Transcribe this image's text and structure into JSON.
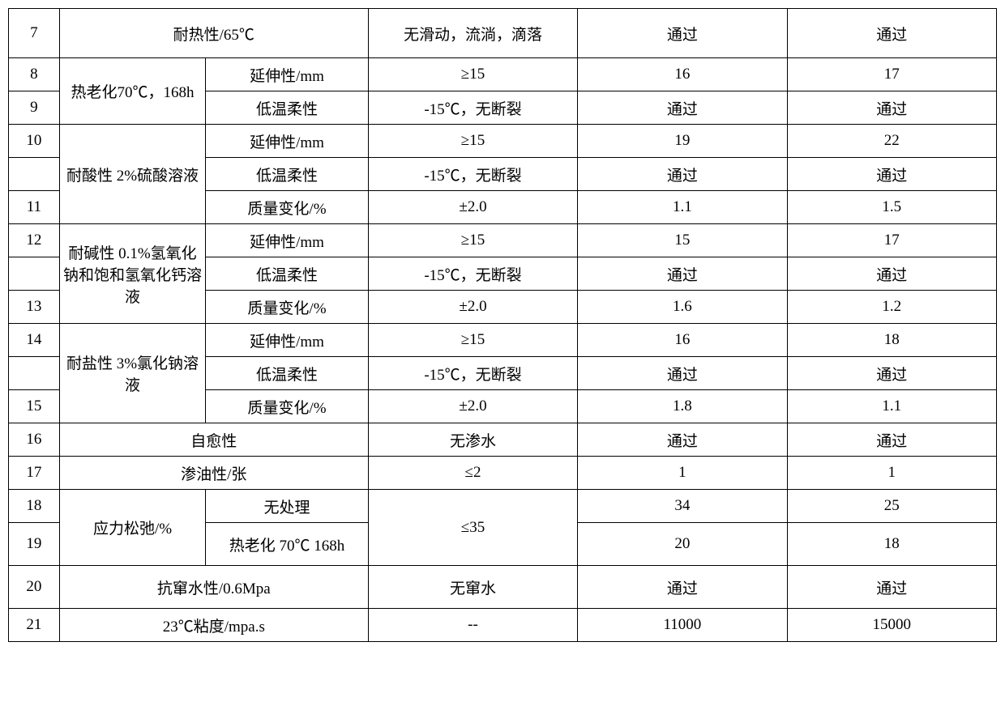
{
  "table": {
    "border_color": "#000000",
    "background": "#ffffff",
    "font_size": 19,
    "rows": {
      "r7": {
        "idx": "7",
        "cat": "耐热性/65℃",
        "req": "无滑动，流淌，滴落",
        "v1": "通过",
        "v2": "通过"
      },
      "r8": {
        "idx": "8",
        "cat": "热老化70℃，168h",
        "sub": "延伸性/mm",
        "req": "≥15",
        "v1": "16",
        "v2": "17"
      },
      "r9": {
        "idx": "9",
        "sub": "低温柔性",
        "req": "-15℃，无断裂",
        "v1": "通过",
        "v2": "通过"
      },
      "r10": {
        "idx": "10",
        "cat": "耐酸性 2%硫酸溶液",
        "sub": "延伸性/mm",
        "req": "≥15",
        "v1": "19",
        "v2": "22"
      },
      "r10b": {
        "idx": "",
        "sub": "低温柔性",
        "req": "-15℃，无断裂",
        "v1": "通过",
        "v2": "通过"
      },
      "r11": {
        "idx": "11",
        "sub": "质量变化/%",
        "req": "±2.0",
        "v1": "1.1",
        "v2": "1.5"
      },
      "r12": {
        "idx": "12",
        "cat": "耐碱性 0.1%氢氧化钠和饱和氢氧化钙溶液",
        "sub": "延伸性/mm",
        "req": "≥15",
        "v1": "15",
        "v2": "17"
      },
      "r12b": {
        "idx": "",
        "sub": "低温柔性",
        "req": "-15℃，无断裂",
        "v1": "通过",
        "v2": "通过"
      },
      "r13": {
        "idx": "13",
        "sub": "质量变化/%",
        "req": "±2.0",
        "v1": "1.6",
        "v2": "1.2"
      },
      "r14": {
        "idx": "14",
        "cat": "耐盐性 3%氯化钠溶液",
        "sub": "延伸性/mm",
        "req": "≥15",
        "v1": "16",
        "v2": "18"
      },
      "r14b": {
        "idx": "",
        "sub": "低温柔性",
        "req": "-15℃，无断裂",
        "v1": "通过",
        "v2": "通过"
      },
      "r15": {
        "idx": "15",
        "sub": "质量变化/%",
        "req": "±2.0",
        "v1": "1.8",
        "v2": "1.1"
      },
      "r16": {
        "idx": "16",
        "cat": "自愈性",
        "req": "无渗水",
        "v1": "通过",
        "v2": "通过"
      },
      "r17": {
        "idx": "17",
        "cat": "渗油性/张",
        "req": "≤2",
        "v1": "1",
        "v2": "1"
      },
      "r18": {
        "idx": "18",
        "cat": "应力松弛/%",
        "sub": "无处理",
        "req": "≤35",
        "v1": "34",
        "v2": "25"
      },
      "r19": {
        "idx": "19",
        "sub": "热老化 70℃ 168h",
        "v1": "20",
        "v2": "18"
      },
      "r20": {
        "idx": "20",
        "cat": "抗窜水性/0.6Mpa",
        "req": "无窜水",
        "v1": "通过",
        "v2": "通过"
      },
      "r21": {
        "idx": "21",
        "cat": "23℃粘度/mpa.s",
        "req": "--",
        "v1": "11000",
        "v2": "15000"
      }
    }
  }
}
